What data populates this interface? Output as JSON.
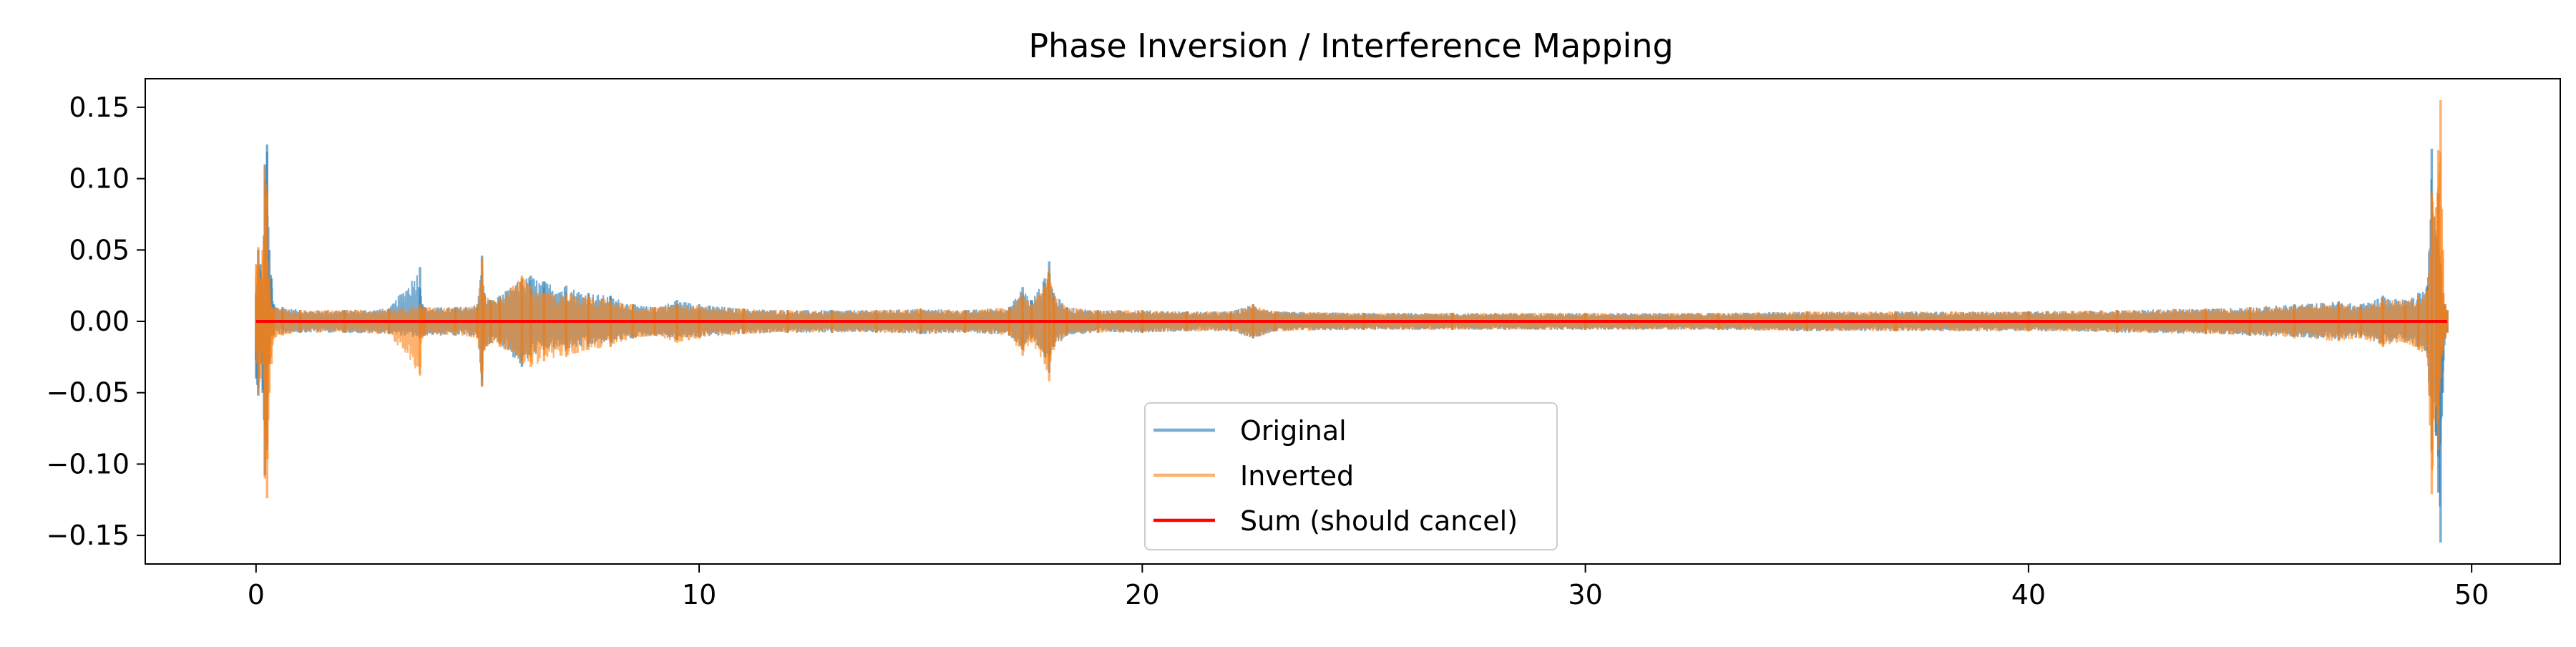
{
  "chart_data": {
    "type": "line",
    "title": "Phase Inversion / Interference Mapping",
    "xlabel": "",
    "ylabel": "",
    "xlim": [
      -2.5,
      52.0
    ],
    "ylim": [
      -0.17,
      0.17
    ],
    "x_ticks": [
      0,
      10,
      20,
      30,
      40,
      50
    ],
    "x_tick_labels": [
      "0",
      "10",
      "20",
      "30",
      "40",
      "50"
    ],
    "y_ticks": [
      0.15,
      0.1,
      0.05,
      0.0,
      -0.05,
      -0.1,
      -0.15
    ],
    "y_tick_labels": [
      "0.15",
      "0.10",
      "0.05",
      "0.00",
      "−0.05",
      "−0.10",
      "−0.15"
    ],
    "grid": false,
    "legend_position": "lower center",
    "series": [
      {
        "name": "Original",
        "color": "#1f77b4",
        "alpha": 0.6,
        "x": [
          0.0,
          0.05,
          0.1,
          0.15,
          0.2,
          0.25,
          0.3,
          0.35,
          0.4,
          0.6,
          1.0,
          2.0,
          3.0,
          3.7,
          3.75,
          3.8,
          4.5,
          5.0,
          5.1,
          5.15,
          5.3,
          5.5,
          6.0,
          6.2,
          6.5,
          7.0,
          7.5,
          8.0,
          8.5,
          9.0,
          9.5,
          10.0,
          11.0,
          12.0,
          13.0,
          14.0,
          15.0,
          16.0,
          17.0,
          17.3,
          17.5,
          17.8,
          17.9,
          18.0,
          18.3,
          19.0,
          20.0,
          21.0,
          22.0,
          22.5,
          23.0,
          25.0,
          27.0,
          30.0,
          33.0,
          35.0,
          37.0,
          40.0,
          42.0,
          44.0,
          45.0,
          46.0,
          47.0,
          47.5,
          48.0,
          48.5,
          48.8,
          49.0,
          49.1,
          49.2,
          49.25,
          49.3,
          49.35,
          49.4,
          49.45
        ],
        "upper": [
          0.02,
          0.05,
          0.04,
          0.03,
          0.11,
          0.124,
          0.05,
          0.03,
          0.012,
          0.01,
          0.008,
          0.008,
          0.009,
          0.038,
          0.012,
          0.01,
          0.01,
          0.012,
          0.046,
          0.02,
          0.015,
          0.018,
          0.03,
          0.032,
          0.028,
          0.025,
          0.02,
          0.018,
          0.012,
          0.01,
          0.015,
          0.012,
          0.009,
          0.008,
          0.008,
          0.008,
          0.009,
          0.008,
          0.01,
          0.024,
          0.015,
          0.03,
          0.042,
          0.02,
          0.01,
          0.008,
          0.008,
          0.007,
          0.007,
          0.012,
          0.007,
          0.006,
          0.006,
          0.006,
          0.006,
          0.007,
          0.007,
          0.007,
          0.008,
          0.009,
          0.01,
          0.012,
          0.014,
          0.012,
          0.018,
          0.015,
          0.02,
          0.025,
          0.121,
          0.06,
          0.09,
          0.04,
          0.02,
          0.012,
          0.008
        ],
        "lower": [
          -0.04,
          -0.052,
          -0.03,
          -0.05,
          -0.108,
          -0.09,
          -0.03,
          -0.01,
          -0.01,
          -0.009,
          -0.008,
          -0.008,
          -0.009,
          -0.012,
          -0.01,
          -0.01,
          -0.01,
          -0.011,
          -0.045,
          -0.02,
          -0.015,
          -0.016,
          -0.032,
          -0.025,
          -0.02,
          -0.02,
          -0.018,
          -0.015,
          -0.012,
          -0.01,
          -0.013,
          -0.011,
          -0.009,
          -0.008,
          -0.008,
          -0.008,
          -0.009,
          -0.008,
          -0.01,
          -0.02,
          -0.012,
          -0.025,
          -0.036,
          -0.018,
          -0.01,
          -0.008,
          -0.008,
          -0.007,
          -0.007,
          -0.012,
          -0.007,
          -0.006,
          -0.006,
          -0.006,
          -0.006,
          -0.007,
          -0.007,
          -0.007,
          -0.008,
          -0.009,
          -0.01,
          -0.011,
          -0.013,
          -0.011,
          -0.016,
          -0.014,
          -0.018,
          -0.022,
          -0.09,
          -0.08,
          -0.12,
          -0.155,
          -0.05,
          -0.012,
          -0.008
        ]
      },
      {
        "name": "Inverted",
        "color": "#ff7f0e",
        "alpha": 0.6,
        "x": [
          0.0,
          0.05,
          0.1,
          0.15,
          0.2,
          0.25,
          0.3,
          0.35,
          0.4,
          0.6,
          1.0,
          2.0,
          3.0,
          3.7,
          3.75,
          3.8,
          4.5,
          5.0,
          5.1,
          5.15,
          5.3,
          5.5,
          6.0,
          6.2,
          6.5,
          7.0,
          7.5,
          8.0,
          8.5,
          9.0,
          9.5,
          10.0,
          11.0,
          12.0,
          13.0,
          14.0,
          15.0,
          16.0,
          17.0,
          17.3,
          17.5,
          17.8,
          17.9,
          18.0,
          18.3,
          19.0,
          20.0,
          21.0,
          22.0,
          22.5,
          23.0,
          25.0,
          27.0,
          30.0,
          33.0,
          35.0,
          37.0,
          40.0,
          42.0,
          44.0,
          45.0,
          46.0,
          47.0,
          47.5,
          48.0,
          48.5,
          48.8,
          49.0,
          49.1,
          49.2,
          49.25,
          49.3,
          49.35,
          49.4,
          49.45
        ],
        "upper": [
          0.04,
          0.052,
          0.03,
          0.05,
          0.108,
          0.09,
          0.03,
          0.01,
          0.01,
          0.009,
          0.008,
          0.008,
          0.009,
          0.012,
          0.01,
          0.01,
          0.01,
          0.011,
          0.045,
          0.02,
          0.015,
          0.016,
          0.032,
          0.025,
          0.02,
          0.02,
          0.018,
          0.015,
          0.012,
          0.01,
          0.013,
          0.011,
          0.009,
          0.008,
          0.008,
          0.008,
          0.009,
          0.008,
          0.01,
          0.02,
          0.012,
          0.025,
          0.036,
          0.018,
          0.01,
          0.008,
          0.008,
          0.007,
          0.007,
          0.012,
          0.007,
          0.006,
          0.006,
          0.006,
          0.006,
          0.007,
          0.007,
          0.007,
          0.008,
          0.009,
          0.01,
          0.011,
          0.013,
          0.011,
          0.016,
          0.014,
          0.018,
          0.022,
          0.09,
          0.08,
          0.12,
          0.155,
          0.05,
          0.012,
          0.008
        ],
        "lower": [
          -0.02,
          -0.05,
          -0.04,
          -0.03,
          -0.11,
          -0.124,
          -0.05,
          -0.03,
          -0.012,
          -0.01,
          -0.008,
          -0.008,
          -0.009,
          -0.038,
          -0.012,
          -0.01,
          -0.01,
          -0.012,
          -0.046,
          -0.02,
          -0.015,
          -0.018,
          -0.03,
          -0.032,
          -0.028,
          -0.025,
          -0.02,
          -0.018,
          -0.012,
          -0.01,
          -0.015,
          -0.012,
          -0.009,
          -0.008,
          -0.008,
          -0.008,
          -0.009,
          -0.008,
          -0.01,
          -0.024,
          -0.015,
          -0.03,
          -0.042,
          -0.02,
          -0.01,
          -0.008,
          -0.008,
          -0.007,
          -0.007,
          -0.012,
          -0.007,
          -0.006,
          -0.006,
          -0.006,
          -0.006,
          -0.007,
          -0.007,
          -0.007,
          -0.008,
          -0.009,
          -0.01,
          -0.012,
          -0.014,
          -0.012,
          -0.018,
          -0.015,
          -0.02,
          -0.025,
          -0.121,
          -0.06,
          -0.09,
          -0.04,
          -0.02,
          -0.012,
          -0.008
        ]
      },
      {
        "name": "Sum (should cancel)",
        "color": "#ff0000",
        "alpha": 1.0,
        "x": [
          0.0,
          49.45
        ],
        "y": [
          0.0,
          0.0
        ]
      }
    ]
  }
}
